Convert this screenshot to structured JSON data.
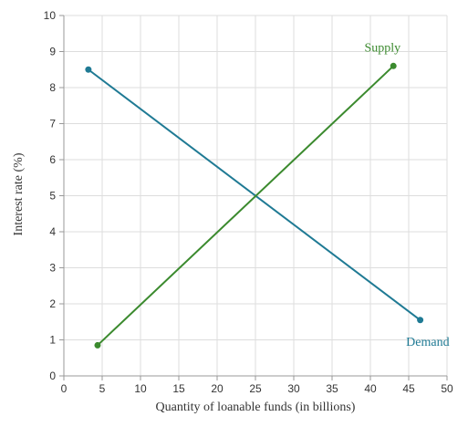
{
  "chart_data": {
    "type": "line",
    "xlabel": "Quantity of loanable funds (in billions)",
    "ylabel": "Interest rate (%)",
    "xlim": [
      0,
      50
    ],
    "ylim": [
      0,
      10
    ],
    "xticks": [
      0,
      5,
      10,
      15,
      20,
      25,
      30,
      35,
      40,
      45,
      50
    ],
    "yticks": [
      0,
      1,
      2,
      3,
      4,
      5,
      6,
      7,
      8,
      9,
      10
    ],
    "grid": true,
    "series": [
      {
        "name": "Demand",
        "color": "#1f7a94",
        "points": [
          {
            "x": 3.2,
            "y": 8.5
          },
          {
            "x": 46.5,
            "y": 1.55
          }
        ]
      },
      {
        "name": "Supply",
        "color": "#3b8a2e",
        "points": [
          {
            "x": 4.4,
            "y": 0.85
          },
          {
            "x": 43.0,
            "y": 8.6
          }
        ]
      }
    ]
  }
}
